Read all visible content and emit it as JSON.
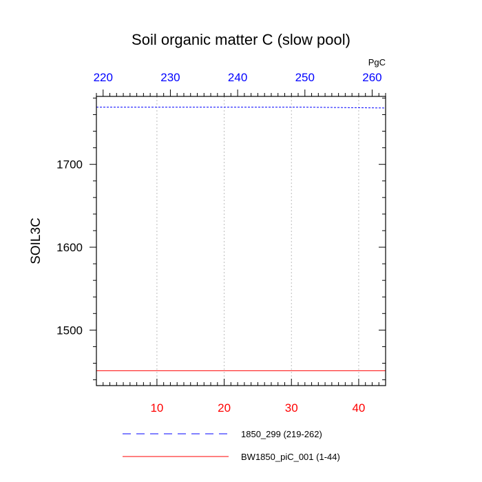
{
  "chart_data": {
    "type": "line",
    "title": "Soil organic matter C (slow pool)",
    "ylabel": "SOIL3C",
    "units": "PgC",
    "ylim": [
      1433,
      1782
    ],
    "yticks": [
      1500,
      1600,
      1700
    ],
    "grid": true,
    "legend_position": "bottom",
    "bottom_axis": {
      "xlim": [
        1,
        44
      ],
      "ticks": [
        10,
        20,
        30,
        40
      ],
      "color": "#ff0000"
    },
    "top_axis": {
      "xlim": [
        219,
        262
      ],
      "ticks": [
        220,
        230,
        240,
        250,
        260
      ],
      "color": "#0000ff"
    },
    "series": [
      {
        "name": "1850_299 (219-262)",
        "axis": "top",
        "color": "#0000ff",
        "dash": "dashed",
        "x": [
          219,
          230,
          240,
          250,
          262
        ],
        "values": [
          1769,
          1769,
          1769,
          1769,
          1768
        ]
      },
      {
        "name": "BW1850_piC_001 (1-44)",
        "axis": "bottom",
        "color": "#ff0000",
        "dash": "solid",
        "x": [
          1,
          10,
          20,
          30,
          44
        ],
        "values": [
          1451,
          1451,
          1451,
          1451,
          1451
        ]
      }
    ]
  }
}
